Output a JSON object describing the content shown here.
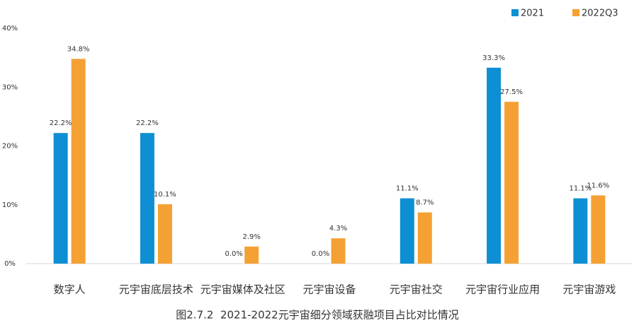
{
  "chart_data": {
    "type": "bar",
    "caption": "图2.7.2  2021-2022元宇宙细分领域获融项目占比对比情况",
    "categories": [
      "数字人",
      "元宇宙底层技术",
      "元宇宙媒体及社区",
      "元宇宙设备",
      "元宇宙社交",
      "元宇宙行业应用",
      "元宇宙游戏"
    ],
    "series": [
      {
        "name": "2021",
        "color": "#0e8fd3",
        "values": [
          22.2,
          22.2,
          0.0,
          0.0,
          11.1,
          33.3,
          11.1
        ],
        "value_labels": [
          "22.2%",
          "22.2%",
          "0.0%",
          "0.0%",
          "11.1%",
          "33.3%",
          "11.1%"
        ]
      },
      {
        "name": "2022Q3",
        "color": "#f5a033",
        "values": [
          34.8,
          10.1,
          2.9,
          4.3,
          8.7,
          27.5,
          11.6
        ],
        "value_labels": [
          "34.8%",
          "10.1%",
          "2.9%",
          "4.3%",
          "8.7%",
          "27.5%",
          "11.6%"
        ]
      }
    ],
    "ylim": [
      0,
      40
    ],
    "yticks": [
      {
        "value": 0,
        "label": "0%"
      },
      {
        "value": 10,
        "label": "10%"
      },
      {
        "value": 20,
        "label": "20%"
      },
      {
        "value": 30,
        "label": "30%"
      },
      {
        "value": 40,
        "label": "40%"
      }
    ],
    "grid": false,
    "legend": "top-right"
  }
}
